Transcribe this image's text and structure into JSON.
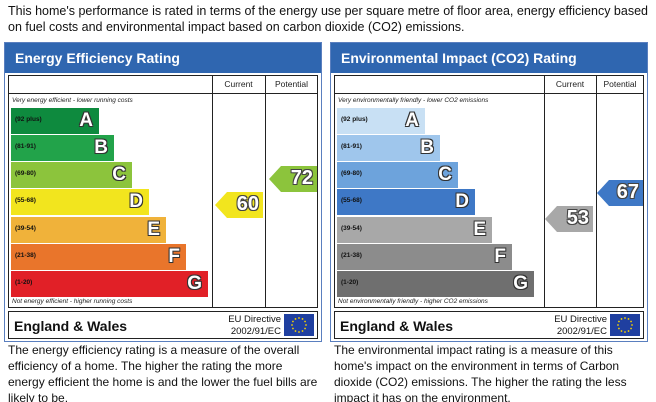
{
  "intro": "This home's performance is rated in terms of the energy use per square metre of floor area, energy efficiency based on fuel costs and environmental impact based on carbon dioxide (CO2) emissions.",
  "colors": {
    "header": "#2f66b0",
    "eff_bands": [
      "#0e8a3e",
      "#22a34a",
      "#8cc43c",
      "#f2e51e",
      "#f0b23a",
      "#e9752b",
      "#e12027"
    ],
    "env_bands": [
      "#c8e0f4",
      "#9fc6ec",
      "#6da3dc",
      "#3e78c6",
      "#a8a8a8",
      "#8c8c8c",
      "#6f6f6f"
    ],
    "eff_current": "#f2e51e",
    "eff_potential": "#8cc43c",
    "env_current": "#a8a8a8",
    "env_potential": "#3e78c6"
  },
  "energy": {
    "title": "Energy Efficiency Rating",
    "col_current": "Current",
    "col_potential": "Potential",
    "top_note": "Very energy efficient - lower running costs",
    "bottom_note": "Not energy efficient - higher running costs",
    "bands": [
      {
        "range": "(92 plus)",
        "letter": "A"
      },
      {
        "range": "(81-91)",
        "letter": "B"
      },
      {
        "range": "(69-80)",
        "letter": "C"
      },
      {
        "range": "(55-68)",
        "letter": "D"
      },
      {
        "range": "(39-54)",
        "letter": "E"
      },
      {
        "range": "(21-38)",
        "letter": "F"
      },
      {
        "range": "(1-20)",
        "letter": "G"
      }
    ],
    "current": "60",
    "potential": "72",
    "region": "England & Wales",
    "directive_line1": "EU Directive",
    "directive_line2": "2002/91/EC",
    "caption": "The energy efficiency rating is a measure of the overall efficiency of a home. The higher the rating the more energy efficient the home is and the lower the fuel bills are likely to be."
  },
  "environment": {
    "title": "Environmental Impact (CO2) Rating",
    "col_current": "Current",
    "col_potential": "Potential",
    "top_note": "Very environmentally friendly - lower CO2 emissions",
    "bottom_note": "Not environmentally friendly - higher CO2 emissions",
    "bands": [
      {
        "range": "(92 plus)",
        "letter": "A"
      },
      {
        "range": "(81-91)",
        "letter": "B"
      },
      {
        "range": "(69-80)",
        "letter": "C"
      },
      {
        "range": "(55-68)",
        "letter": "D"
      },
      {
        "range": "(39-54)",
        "letter": "E"
      },
      {
        "range": "(21-38)",
        "letter": "F"
      },
      {
        "range": "(1-20)",
        "letter": "G"
      }
    ],
    "current": "53",
    "potential": "67",
    "region": "England & Wales",
    "directive_line1": "EU Directive",
    "directive_line2": "2002/91/EC",
    "caption": "The environmental impact rating is a measure of this home's impact on the environment in terms of Carbon dioxide (CO2) emissions. The higher the rating the less impact it has on the environment."
  }
}
